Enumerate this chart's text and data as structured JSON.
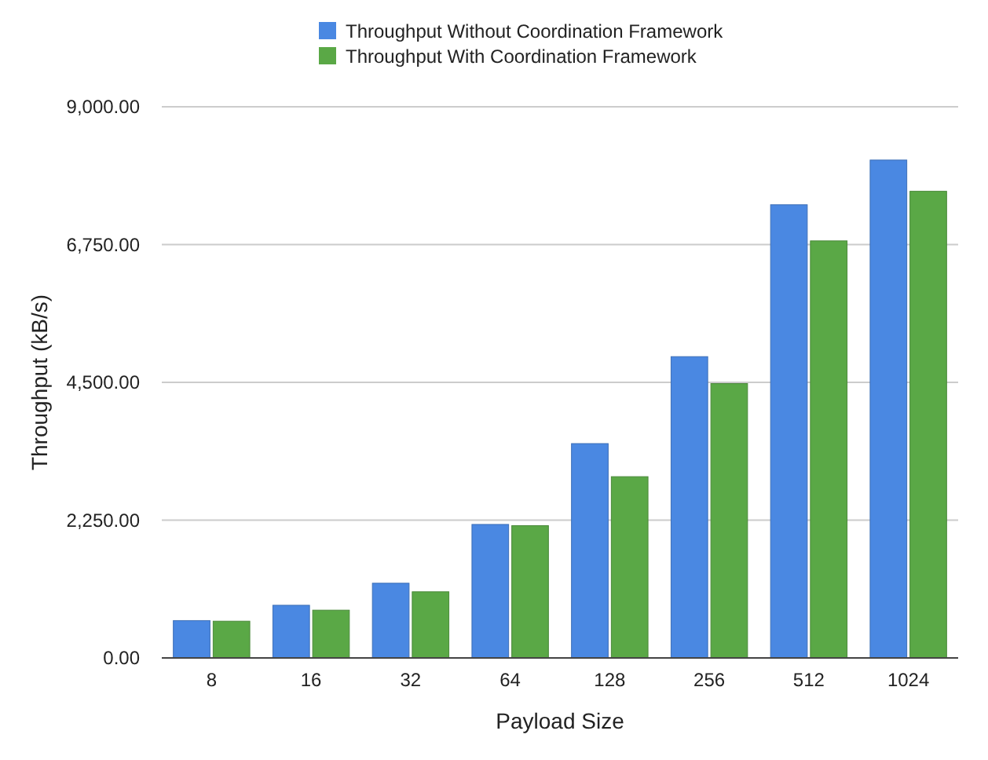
{
  "chart_data": {
    "type": "bar",
    "xlabel": "Payload Size",
    "ylabel": "Throughput (kB/s)",
    "categories": [
      "8",
      "16",
      "32",
      "64",
      "128",
      "256",
      "512",
      "1024"
    ],
    "series": [
      {
        "name": "Throughput Without Coordination Framework",
        "color": "#4a88e2",
        "values": [
          610,
          860,
          1220,
          2180,
          3500,
          4920,
          7400,
          8130
        ]
      },
      {
        "name": "Throughput With Coordination Framework",
        "color": "#5aa846",
        "values": [
          600,
          780,
          1080,
          2160,
          2960,
          4480,
          6810,
          7620
        ]
      }
    ],
    "ylim": [
      0,
      9000
    ],
    "yticks": [
      {
        "value": 0,
        "label": "0.00"
      },
      {
        "value": 2250,
        "label": "2,250.00"
      },
      {
        "value": 4500,
        "label": "4,500.00"
      },
      {
        "value": 6750,
        "label": "6,750.00"
      },
      {
        "value": 9000,
        "label": "9,000.00"
      }
    ],
    "grid": "y",
    "legend": "top"
  }
}
